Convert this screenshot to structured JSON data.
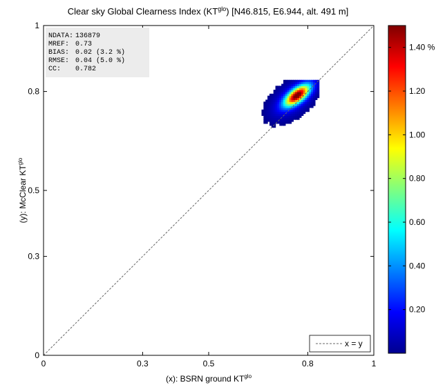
{
  "chart_data": {
    "type": "heatmap",
    "title_main": "Clear sky Global Clearness Index (KT",
    "title_sup": "glo",
    "title_rest": ") [N46.815, E6.944, alt. 491 m]",
    "xlabel_main": "(x): BSRN ground KT",
    "xlabel_sup": "glo",
    "ylabel_main": "(y): McClear KT",
    "ylabel_sup": "glo",
    "xlim": [
      0,
      1
    ],
    "ylim": [
      0,
      1
    ],
    "x_ticks": [
      0,
      0.3,
      0.5,
      0.8,
      1
    ],
    "x_tick_labels": [
      "0",
      "0.3",
      "0.5",
      "0.8",
      "1"
    ],
    "y_ticks": [
      0,
      0.3,
      0.5,
      0.8,
      1
    ],
    "y_tick_labels": [
      "0",
      "0.3",
      "0.5",
      "0.8",
      "1"
    ],
    "grid": false,
    "stats_box": [
      {
        "label": "NDATA:",
        "value": "136879"
      },
      {
        "label": "MREF:",
        "value": "0.73"
      },
      {
        "label": "BIAS:",
        "value": "0.02  (3.2 %)"
      },
      {
        "label": "RMSE:",
        "value": "0.04  (5.0 %)"
      },
      {
        "label": "CC:",
        "value": "0.782"
      }
    ],
    "identity_line": {
      "from": [
        0,
        0
      ],
      "to": [
        1,
        1
      ],
      "style": "dashed",
      "legend": "x = y"
    },
    "legend_position": "bottom-right",
    "density_blob": {
      "center": [
        0.75,
        0.772
      ],
      "extent_x": [
        0.6,
        0.83
      ],
      "extent_y": [
        0.6,
        0.83
      ],
      "peak_value_percent": 1.48,
      "peak_location": [
        0.765,
        0.785
      ]
    },
    "colorbar": {
      "range": [
        0,
        1.5
      ],
      "tick_values": [
        0.2,
        0.4,
        0.6,
        0.8,
        1.0,
        1.2,
        1.4
      ],
      "tick_labels": [
        "0.20",
        "0.40",
        "0.60",
        "0.80",
        "1.00",
        "1.20",
        "1.40 %"
      ],
      "colormap": "jet"
    }
  }
}
